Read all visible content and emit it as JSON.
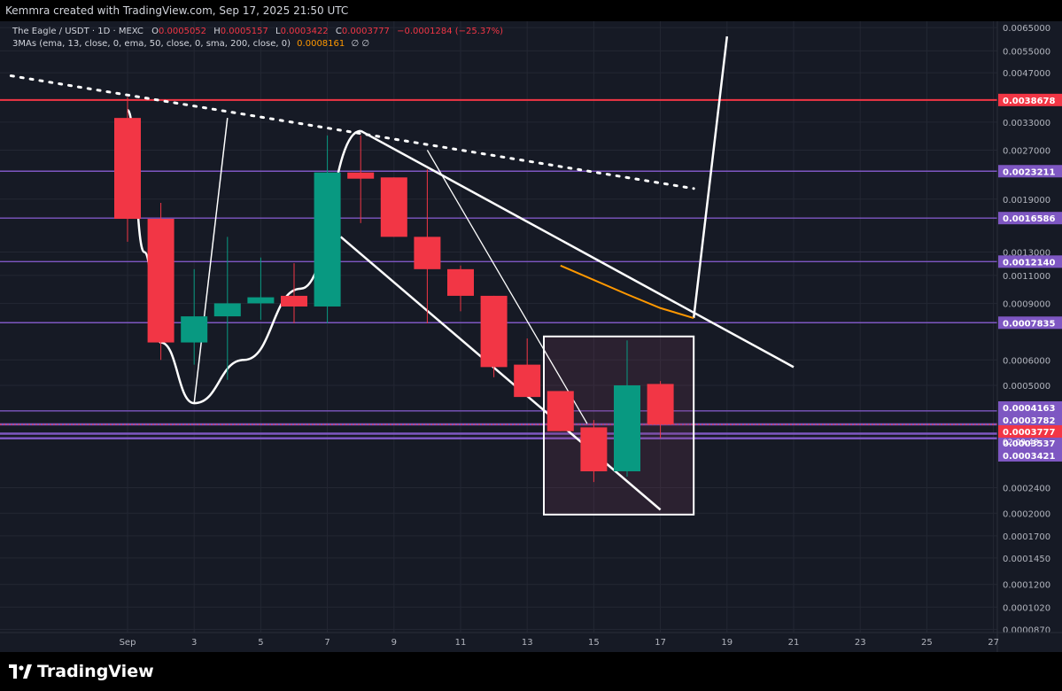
{
  "header": {
    "text": "Kemmra created with TradingView.com, Sep 17, 2025 21:50 UTC"
  },
  "legend": {
    "symbol": "The Eagle / USDT · 1D · MEXC",
    "ohlc": [
      {
        "k": "O",
        "v": "0.0005052"
      },
      {
        "k": "H",
        "v": "0.0005157"
      },
      {
        "k": "L",
        "v": "0.0003422"
      },
      {
        "k": "C",
        "v": "0.0003777"
      }
    ],
    "change": "−0.0001284 (−25.37%)",
    "ma_label": "3MAs (ema, 13, close, 0, ema, 50, close, 0, sma, 200, close, 0)",
    "ma_value": "0.0008161",
    "ma_empty": "∅ ∅"
  },
  "footer": {
    "brand": "TradingView"
  },
  "colors": {
    "background": "#161a25",
    "up": "#089981",
    "down": "#f23645",
    "level_line": "#7e57c2",
    "resistance": "#f23645",
    "ma": "#ff9800",
    "drawing": "#ffffff",
    "axis_text": "#b2b5be"
  },
  "chart_data": {
    "type": "candlestick",
    "scale": "log",
    "ylim": [
      8.5e-05,
      0.0068
    ],
    "x_ticks": [
      {
        "day": 1,
        "label": "Sep"
      },
      {
        "day": 3,
        "label": "3"
      },
      {
        "day": 5,
        "label": "5"
      },
      {
        "day": 7,
        "label": "7"
      },
      {
        "day": 9,
        "label": "9"
      },
      {
        "day": 11,
        "label": "11"
      },
      {
        "day": 13,
        "label": "13"
      },
      {
        "day": 15,
        "label": "15"
      },
      {
        "day": 17,
        "label": "17"
      },
      {
        "day": 19,
        "label": "19"
      },
      {
        "day": 21,
        "label": "21"
      },
      {
        "day": 23,
        "label": "23"
      },
      {
        "day": 25,
        "label": "25"
      },
      {
        "day": 27,
        "label": "27"
      }
    ],
    "y_ticks": [
      "0.0065000",
      "0.0055000",
      "0.0047000",
      "0.0033000",
      "0.0027000",
      "0.0019000",
      "0.0013000",
      "0.0011000",
      "0.0009000",
      "0.0006000",
      "0.0005000",
      "0.0002400",
      "0.0002000",
      "0.0001700",
      "0.0001450",
      "0.0001200",
      "0.0001020",
      "0.0000870"
    ],
    "candles": [
      {
        "day": 1,
        "open": 0.0034,
        "high": 0.00395,
        "low": 0.0014,
        "close": 0.00165
      },
      {
        "day": 2,
        "open": 0.00165,
        "high": 0.00185,
        "low": 0.0006,
        "close": 0.00068
      },
      {
        "day": 3,
        "open": 0.00068,
        "high": 0.00115,
        "low": 0.00058,
        "close": 0.00082
      },
      {
        "day": 4,
        "open": 0.00082,
        "high": 0.00145,
        "low": 0.00052,
        "close": 0.0009
      },
      {
        "day": 5,
        "open": 0.0009,
        "high": 0.00125,
        "low": 0.0008,
        "close": 0.00094
      },
      {
        "day": 6,
        "open": 0.00095,
        "high": 0.0012,
        "low": 0.00078,
        "close": 0.00088
      },
      {
        "day": 7,
        "open": 0.00088,
        "high": 0.003,
        "low": 0.00078,
        "close": 0.0023
      },
      {
        "day": 8,
        "open": 0.0023,
        "high": 0.003,
        "low": 0.0016,
        "close": 0.0022
      },
      {
        "day": 9,
        "open": 0.00222,
        "high": 0.00222,
        "low": 0.00145,
        "close": 0.00145
      },
      {
        "day": 10,
        "open": 0.00145,
        "high": 0.00235,
        "low": 0.00078,
        "close": 0.00115
      },
      {
        "day": 11,
        "open": 0.00115,
        "high": 0.00118,
        "low": 0.00085,
        "close": 0.00095
      },
      {
        "day": 12,
        "open": 0.00095,
        "high": 0.00095,
        "low": 0.00053,
        "close": 0.00057
      },
      {
        "day": 13,
        "open": 0.00058,
        "high": 0.0007,
        "low": 0.00046,
        "close": 0.00046
      },
      {
        "day": 14,
        "open": 0.00048,
        "high": 0.00048,
        "low": 0.00036,
        "close": 0.00036
      },
      {
        "day": 15,
        "open": 0.00037,
        "high": 0.00039,
        "low": 0.00025,
        "close": 0.00027
      },
      {
        "day": 16,
        "open": 0.00027,
        "high": 0.00069,
        "low": 0.00026,
        "close": 0.0005
      },
      {
        "day": 17,
        "open": 0.000505,
        "high": 0.0005157,
        "low": 0.0003422,
        "close": 0.0003777
      }
    ],
    "ma_series": [
      {
        "day": 14.0,
        "value": 0.00118
      },
      {
        "day": 16.0,
        "value": 0.00096
      },
      {
        "day": 17.0,
        "value": 0.00087
      },
      {
        "day": 18.0,
        "value": 0.00081
      }
    ],
    "horizontal_levels": [
      {
        "value": "0.0038678",
        "price": 0.0038678,
        "color": "#f23645"
      },
      {
        "value": "0.0023211",
        "price": 0.0023211,
        "color": "#7e57c2"
      },
      {
        "value": "0.0016586",
        "price": 0.0016586,
        "color": "#7e57c2"
      },
      {
        "value": "0.0012140",
        "price": 0.001214,
        "color": "#7e57c2"
      },
      {
        "value": "0.0007835",
        "price": 0.0007835,
        "color": "#7e57c2"
      },
      {
        "value": "0.0004163",
        "price": 0.0004163,
        "color": "#7e57c2"
      },
      {
        "value": "0.0003782",
        "price": 0.0003782,
        "color": "#7e57c2"
      },
      {
        "value": "0.0003537",
        "price": 0.0003537,
        "color": "#7e57c2"
      },
      {
        "value": "0.0003421",
        "price": 0.0003421,
        "color": "#7e57c2"
      }
    ],
    "last_price": {
      "value": "0.0003777",
      "countdown": "02:09:48",
      "price": 0.0003777
    },
    "trendlines": [
      {
        "style": "dotted",
        "from": {
          "day": -2.5,
          "price": 0.0046
        },
        "to": {
          "day": 18.0,
          "price": 0.00205
        }
      },
      {
        "style": "solid",
        "from": {
          "day": 8.0,
          "price": 0.0031
        },
        "to": {
          "day": 21.0,
          "price": 0.00057
        }
      },
      {
        "style": "solid",
        "from": {
          "day": 7.4,
          "price": 0.00145
        },
        "to": {
          "day": 17.0,
          "price": 0.000205
        }
      },
      {
        "style": "thin",
        "from": {
          "day": 10.0,
          "price": 0.0027
        },
        "to": {
          "day": 14.8,
          "price": 0.00038
        }
      },
      {
        "style": "solid",
        "from": {
          "day": 18.0,
          "price": 0.00081
        },
        "to": {
          "day": 19.0,
          "price": 0.0061
        }
      }
    ],
    "cup_path": [
      {
        "day": 1.0,
        "price": 0.0036
      },
      {
        "day": 1.5,
        "price": 0.0013
      },
      {
        "day": 2.0,
        "price": 0.00068
      },
      {
        "day": 3.0,
        "price": 0.00044
      },
      {
        "day": 4.5,
        "price": 0.0006
      },
      {
        "day": 6.2,
        "price": 0.001
      },
      {
        "day": 8.0,
        "price": 0.0031
      }
    ],
    "handle_line": {
      "from": {
        "day": 3.0,
        "price": 0.00044
      },
      "to": {
        "day": 4.0,
        "price": 0.0034
      }
    },
    "box": {
      "day_from": 13.5,
      "day_to": 18.0,
      "price_top": 0.00071,
      "price_bottom": 0.000198
    }
  }
}
